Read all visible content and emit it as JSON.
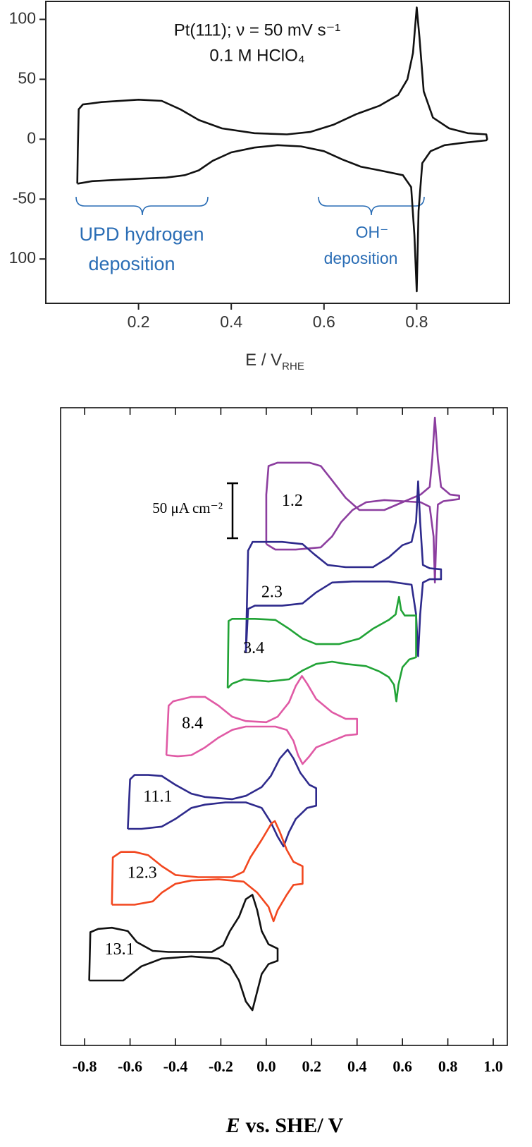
{
  "chart_data": [
    {
      "type": "line",
      "annotations": [
        "Pt(111); ν = 50 mV s⁻¹",
        "0.1 M HClO₄"
      ],
      "regions": [
        {
          "label": [
            "UPD hydrogen",
            "deposition"
          ],
          "color": "#2a6db5"
        },
        {
          "label": [
            "OH⁻",
            "deposition"
          ],
          "color": "#2a6db5"
        }
      ],
      "xlabel": "E / V",
      "xlabel_sub": "RHE",
      "xlim": [
        0,
        1
      ],
      "xticks": [
        0.2,
        0.4,
        0.6,
        0.8
      ],
      "ylim": [
        -137,
        115
      ],
      "yticks": [
        {
          "value": -100,
          "label": "100"
        },
        -50,
        0,
        50,
        100
      ],
      "series": [
        {
          "color": "#111111",
          "x": [
            0.068,
            0.069,
            0.071,
            0.08,
            0.12,
            0.2,
            0.25,
            0.29,
            0.33,
            0.38,
            0.45,
            0.52,
            0.57,
            0.62,
            0.67,
            0.72,
            0.76,
            0.78,
            0.792,
            0.8,
            0.806,
            0.815,
            0.835,
            0.87,
            0.91,
            0.95,
            0.952,
            0.95,
            0.9,
            0.86,
            0.83,
            0.812,
            0.804,
            0.8,
            0.795,
            0.788,
            0.77,
            0.72,
            0.68,
            0.64,
            0.6,
            0.55,
            0.5,
            0.45,
            0.4,
            0.36,
            0.33,
            0.3,
            0.26,
            0.2,
            0.15,
            0.1,
            0.07,
            0.068
          ],
          "values": [
            -37,
            -10,
            25,
            29,
            31,
            33,
            32,
            25,
            16,
            9,
            5,
            4,
            6,
            12,
            21,
            28,
            37,
            50,
            72,
            110,
            85,
            40,
            18,
            9,
            5,
            4,
            0,
            -1,
            -3,
            -5,
            -10,
            -20,
            -60,
            -127,
            -80,
            -40,
            -30,
            -26,
            -23,
            -17,
            -10,
            -6,
            -5,
            -7,
            -11,
            -18,
            -26,
            -30,
            -32,
            -33,
            -34,
            -35,
            -37,
            -37
          ]
        }
      ]
    },
    {
      "type": "line",
      "xlabel_symbol": "E",
      "xlabel": "vs. SHE/ V",
      "scale_bar": {
        "value": 50,
        "label": "50 μA cm⁻²"
      },
      "xlim": [
        -0.906,
        1.062
      ],
      "xticks": [
        -0.8,
        -0.6,
        -0.4,
        -0.2,
        {
          "value": 0,
          "label": "0.0"
        },
        0.2,
        0.4,
        0.6,
        0.8,
        {
          "value": 1,
          "label": "1.0"
        }
      ],
      "ylim": [
        0,
        580
      ],
      "series": [
        {
          "name": "1.2",
          "color": "#8c3e9f",
          "x": [
            0.0,
            0.0,
            0.01,
            0.05,
            0.19,
            0.24,
            0.29,
            0.35,
            0.41,
            0.52,
            0.6,
            0.68,
            0.72,
            0.731,
            0.743,
            0.756,
            0.77,
            0.81,
            0.85,
            0.85,
            0.78,
            0.756,
            0.749,
            0.743,
            0.737,
            0.72,
            0.68,
            0.6,
            0.52,
            0.44,
            0.38,
            0.33,
            0.29,
            0.24,
            0.13,
            0.04,
            0.0
          ],
          "values": [
            456,
            501,
            527,
            530,
            530,
            527,
            514,
            498,
            487,
            487,
            494,
            501,
            508,
            533,
            571,
            533,
            508,
            501,
            500,
            497,
            495,
            492,
            463,
            421,
            463,
            490,
            494,
            495,
            496,
            494,
            487,
            476,
            463,
            453,
            451,
            451,
            456
          ]
        },
        {
          "name": "2.3",
          "color": "#2e2a8c",
          "x": [
            -0.09,
            -0.08,
            -0.06,
            0.07,
            0.16,
            0.21,
            0.27,
            0.35,
            0.47,
            0.54,
            0.6,
            0.64,
            0.66,
            0.669,
            0.678,
            0.69,
            0.72,
            0.77,
            0.77,
            0.72,
            0.69,
            0.678,
            0.669,
            0.66,
            0.64,
            0.54,
            0.38,
            0.29,
            0.22,
            0.16,
            0.07,
            -0.05,
            -0.08,
            -0.09
          ],
          "values": [
            357,
            450,
            458,
            458,
            456,
            447,
            437,
            435,
            435,
            444,
            455,
            458,
            476,
            513,
            476,
            437,
            434,
            433,
            424,
            424,
            421,
            392,
            354,
            392,
            419,
            422,
            422,
            421,
            412,
            402,
            400,
            400,
            397,
            357
          ]
        },
        {
          "name": "3.4",
          "color": "#21a336",
          "x": [
            -0.17,
            -0.166,
            -0.15,
            -0.05,
            0.04,
            0.1,
            0.16,
            0.22,
            0.32,
            0.41,
            0.47,
            0.54,
            0.57,
            0.579,
            0.585,
            0.594,
            0.61,
            0.66,
            0.66,
            0.63,
            0.6,
            0.582,
            0.573,
            0.563,
            0.54,
            0.5,
            0.44,
            0.35,
            0.29,
            0.22,
            0.16,
            0.1,
            0.01,
            -0.1,
            -0.15,
            -0.17
          ],
          "values": [
            325,
            386,
            388,
            388,
            387,
            379,
            370,
            365,
            365,
            370,
            379,
            387,
            392,
            402,
            408,
            396,
            391,
            391,
            353,
            351,
            344,
            328,
            313,
            328,
            335,
            340,
            345,
            347,
            349,
            347,
            341,
            333,
            331,
            333,
            329,
            325
          ]
        },
        {
          "name": "8.4",
          "color": "#e05aa5",
          "x": [
            -0.44,
            -0.43,
            -0.41,
            -0.33,
            -0.27,
            -0.21,
            -0.15,
            -0.09,
            0.0,
            0.05,
            0.1,
            0.13,
            0.157,
            0.18,
            0.22,
            0.29,
            0.35,
            0.4,
            0.4,
            0.35,
            0.29,
            0.22,
            0.19,
            0.16,
            0.14,
            0.12,
            0.09,
            0.04,
            -0.02,
            -0.09,
            -0.15,
            -0.21,
            -0.27,
            -0.33,
            -0.39,
            -0.44
          ],
          "values": [
            264,
            309,
            313,
            317,
            317,
            309,
            299,
            295,
            294,
            299,
            312,
            327,
            336,
            329,
            315,
            303,
            297,
            297,
            283,
            282,
            277,
            271,
            263,
            256,
            264,
            277,
            287,
            290,
            290,
            290,
            287,
            280,
            271,
            264,
            263,
            264
          ]
        },
        {
          "name": "11.1",
          "color": "#2e2a8c",
          "x": [
            -0.61,
            -0.6,
            -0.58,
            -0.52,
            -0.46,
            -0.4,
            -0.33,
            -0.27,
            -0.15,
            -0.09,
            -0.02,
            0.02,
            0.06,
            0.094,
            0.12,
            0.15,
            0.19,
            0.22,
            0.22,
            0.18,
            0.13,
            0.1,
            0.076,
            0.05,
            0.02,
            -0.02,
            -0.09,
            -0.18,
            -0.27,
            -0.33,
            -0.4,
            -0.46,
            -0.55,
            -0.61
          ],
          "values": [
            197,
            242,
            246,
            246,
            245,
            237,
            229,
            226,
            224,
            227,
            235,
            245,
            261,
            269,
            261,
            248,
            237,
            234,
            218,
            216,
            206,
            194,
            181,
            190,
            203,
            216,
            221,
            221,
            219,
            216,
            206,
            199,
            197,
            197
          ]
        },
        {
          "name": "12.3",
          "color": "#f2471f",
          "x": [
            -0.68,
            -0.676,
            -0.64,
            -0.58,
            -0.52,
            -0.46,
            -0.4,
            -0.3,
            -0.15,
            -0.1,
            -0.07,
            -0.02,
            0.023,
            0.038,
            0.06,
            0.09,
            0.12,
            0.16,
            0.16,
            0.12,
            0.09,
            0.05,
            0.032,
            0.01,
            -0.04,
            -0.1,
            -0.21,
            -0.33,
            -0.4,
            -0.46,
            -0.5,
            -0.58,
            -0.68
          ],
          "values": [
            128,
            171,
            176,
            176,
            173,
            163,
            155,
            153,
            153,
            158,
            171,
            187,
            202,
            204,
            194,
            178,
            167,
            163,
            147,
            146,
            137,
            123,
            113,
            126,
            139,
            149,
            151,
            150,
            147,
            139,
            131,
            128,
            128
          ]
        },
        {
          "name": "13.1",
          "color": "#111111",
          "x": [
            -0.78,
            -0.775,
            -0.74,
            -0.68,
            -0.61,
            -0.57,
            -0.5,
            -0.43,
            -0.24,
            -0.19,
            -0.16,
            -0.12,
            -0.09,
            -0.061,
            -0.04,
            -0.02,
            0.01,
            0.05,
            0.05,
            0.01,
            -0.02,
            -0.04,
            -0.061,
            -0.09,
            -0.12,
            -0.16,
            -0.21,
            -0.33,
            -0.46,
            -0.55,
            -0.63,
            -0.71,
            -0.78
          ],
          "values": [
            59,
            103,
            106,
            107,
            104,
            94,
            86,
            85,
            85,
            91,
            104,
            117,
            133,
            137,
            123,
            104,
            92,
            88,
            77,
            74,
            65,
            49,
            32,
            40,
            59,
            73,
            79,
            81,
            79,
            72,
            59,
            59,
            59
          ]
        }
      ]
    }
  ]
}
